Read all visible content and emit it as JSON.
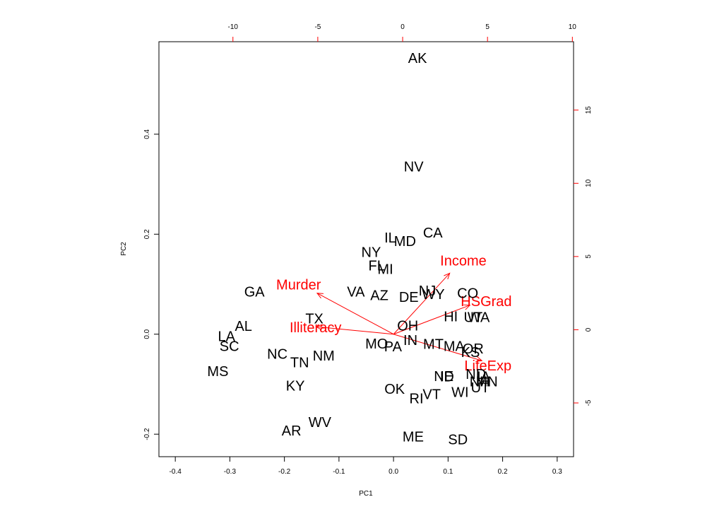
{
  "chart_data": {
    "type": "scatter",
    "subtype": "biplot",
    "xlabel": "PC1",
    "ylabel": "PC2",
    "xlim": [
      -0.43,
      0.33
    ],
    "ylim": [
      -0.245,
      0.585
    ],
    "x_ticks": [
      -0.4,
      -0.3,
      -0.2,
      -0.1,
      0.0,
      0.1,
      0.2,
      0.3
    ],
    "y_ticks": [
      -0.2,
      0.0,
      0.2,
      0.4
    ],
    "top_ticks": [
      -10,
      -5,
      0,
      5,
      10
    ],
    "right_ticks": [
      -5,
      0,
      5,
      10,
      15
    ],
    "top_axis_range": [
      -14.36,
      10.07
    ],
    "right_axis_range": [
      -8.67,
      19.67
    ],
    "point_color": "#000000",
    "arrow_color": "#ff0000",
    "points": [
      {
        "label": "AK",
        "x": 0.044,
        "y": 0.551
      },
      {
        "label": "NV",
        "x": 0.037,
        "y": 0.334
      },
      {
        "label": "CA",
        "x": 0.072,
        "y": 0.202
      },
      {
        "label": "IL",
        "x": -0.006,
        "y": 0.192
      },
      {
        "label": "MD",
        "x": 0.021,
        "y": 0.185
      },
      {
        "label": "NY",
        "x": -0.041,
        "y": 0.163
      },
      {
        "label": "FL",
        "x": -0.031,
        "y": 0.136
      },
      {
        "label": "MI",
        "x": -0.015,
        "y": 0.129
      },
      {
        "label": "VA",
        "x": -0.069,
        "y": 0.084
      },
      {
        "label": "AZ",
        "x": -0.026,
        "y": 0.077
      },
      {
        "label": "DE",
        "x": 0.028,
        "y": 0.073
      },
      {
        "label": "NJ",
        "x": 0.062,
        "y": 0.086
      },
      {
        "label": "WY",
        "x": 0.073,
        "y": 0.079
      },
      {
        "label": "CO",
        "x": 0.136,
        "y": 0.081
      },
      {
        "label": "GA",
        "x": -0.255,
        "y": 0.084
      },
      {
        "label": "TX",
        "x": -0.145,
        "y": 0.03
      },
      {
        "label": "HI",
        "x": 0.105,
        "y": 0.034
      },
      {
        "label": "UT",
        "x": 0.146,
        "y": 0.033
      },
      {
        "label": "WA",
        "x": 0.156,
        "y": 0.033
      },
      {
        "label": "OH",
        "x": 0.026,
        "y": 0.016
      },
      {
        "label": "AL",
        "x": -0.275,
        "y": 0.015
      },
      {
        "label": "LA",
        "x": -0.306,
        "y": -0.005
      },
      {
        "label": "SC",
        "x": -0.301,
        "y": -0.025
      },
      {
        "label": "MO",
        "x": -0.031,
        "y": -0.02
      },
      {
        "label": "PA",
        "x": -0.001,
        "y": -0.026
      },
      {
        "label": "IN",
        "x": 0.031,
        "y": -0.013
      },
      {
        "label": "MT",
        "x": 0.073,
        "y": -0.021
      },
      {
        "label": "MA",
        "x": 0.111,
        "y": -0.025
      },
      {
        "label": "OR",
        "x": 0.146,
        "y": -0.03
      },
      {
        "label": "KS",
        "x": 0.141,
        "y": -0.037
      },
      {
        "label": "NC",
        "x": -0.213,
        "y": -0.041
      },
      {
        "label": "NM",
        "x": -0.128,
        "y": -0.044
      },
      {
        "label": "TN",
        "x": -0.172,
        "y": -0.058
      },
      {
        "label": "MS",
        "x": -0.322,
        "y": -0.075
      },
      {
        "label": "NE",
        "x": 0.092,
        "y": -0.085
      },
      {
        "label": "ID",
        "x": 0.098,
        "y": -0.086
      },
      {
        "label": "ND",
        "x": 0.151,
        "y": -0.081
      },
      {
        "label": "IA",
        "x": 0.165,
        "y": -0.086
      },
      {
        "label": "NH",
        "x": 0.158,
        "y": -0.096
      },
      {
        "label": "MN",
        "x": 0.171,
        "y": -0.096
      },
      {
        "label": "UT",
        "x": 0.159,
        "y": -0.108
      },
      {
        "label": "KY",
        "x": -0.18,
        "y": -0.104
      },
      {
        "label": "WI",
        "x": 0.122,
        "y": -0.117
      },
      {
        "label": "OK",
        "x": 0.002,
        "y": -0.111
      },
      {
        "label": "VT",
        "x": 0.07,
        "y": -0.121
      },
      {
        "label": "RI",
        "x": 0.042,
        "y": -0.13
      },
      {
        "label": "WV",
        "x": -0.135,
        "y": -0.177
      },
      {
        "label": "AR",
        "x": -0.187,
        "y": -0.194
      },
      {
        "label": "ME",
        "x": 0.036,
        "y": -0.206
      },
      {
        "label": "SD",
        "x": 0.118,
        "y": -0.212
      }
    ],
    "arrows": [
      {
        "label": "Income",
        "x": 0.103,
        "y": 0.122,
        "label_x": 0.128,
        "label_y": 0.146
      },
      {
        "label": "Murder",
        "x": -0.14,
        "y": 0.082,
        "label_x": -0.174,
        "label_y": 0.098
      },
      {
        "label": "Illiteracy",
        "x": -0.142,
        "y": 0.015,
        "label_x": -0.143,
        "label_y": 0.012
      },
      {
        "label": "HSGrad",
        "x": 0.14,
        "y": 0.058,
        "label_x": 0.17,
        "label_y": 0.065
      },
      {
        "label": "LifeExp",
        "x": 0.162,
        "y": -0.053,
        "label_x": 0.173,
        "label_y": -0.064
      }
    ]
  }
}
